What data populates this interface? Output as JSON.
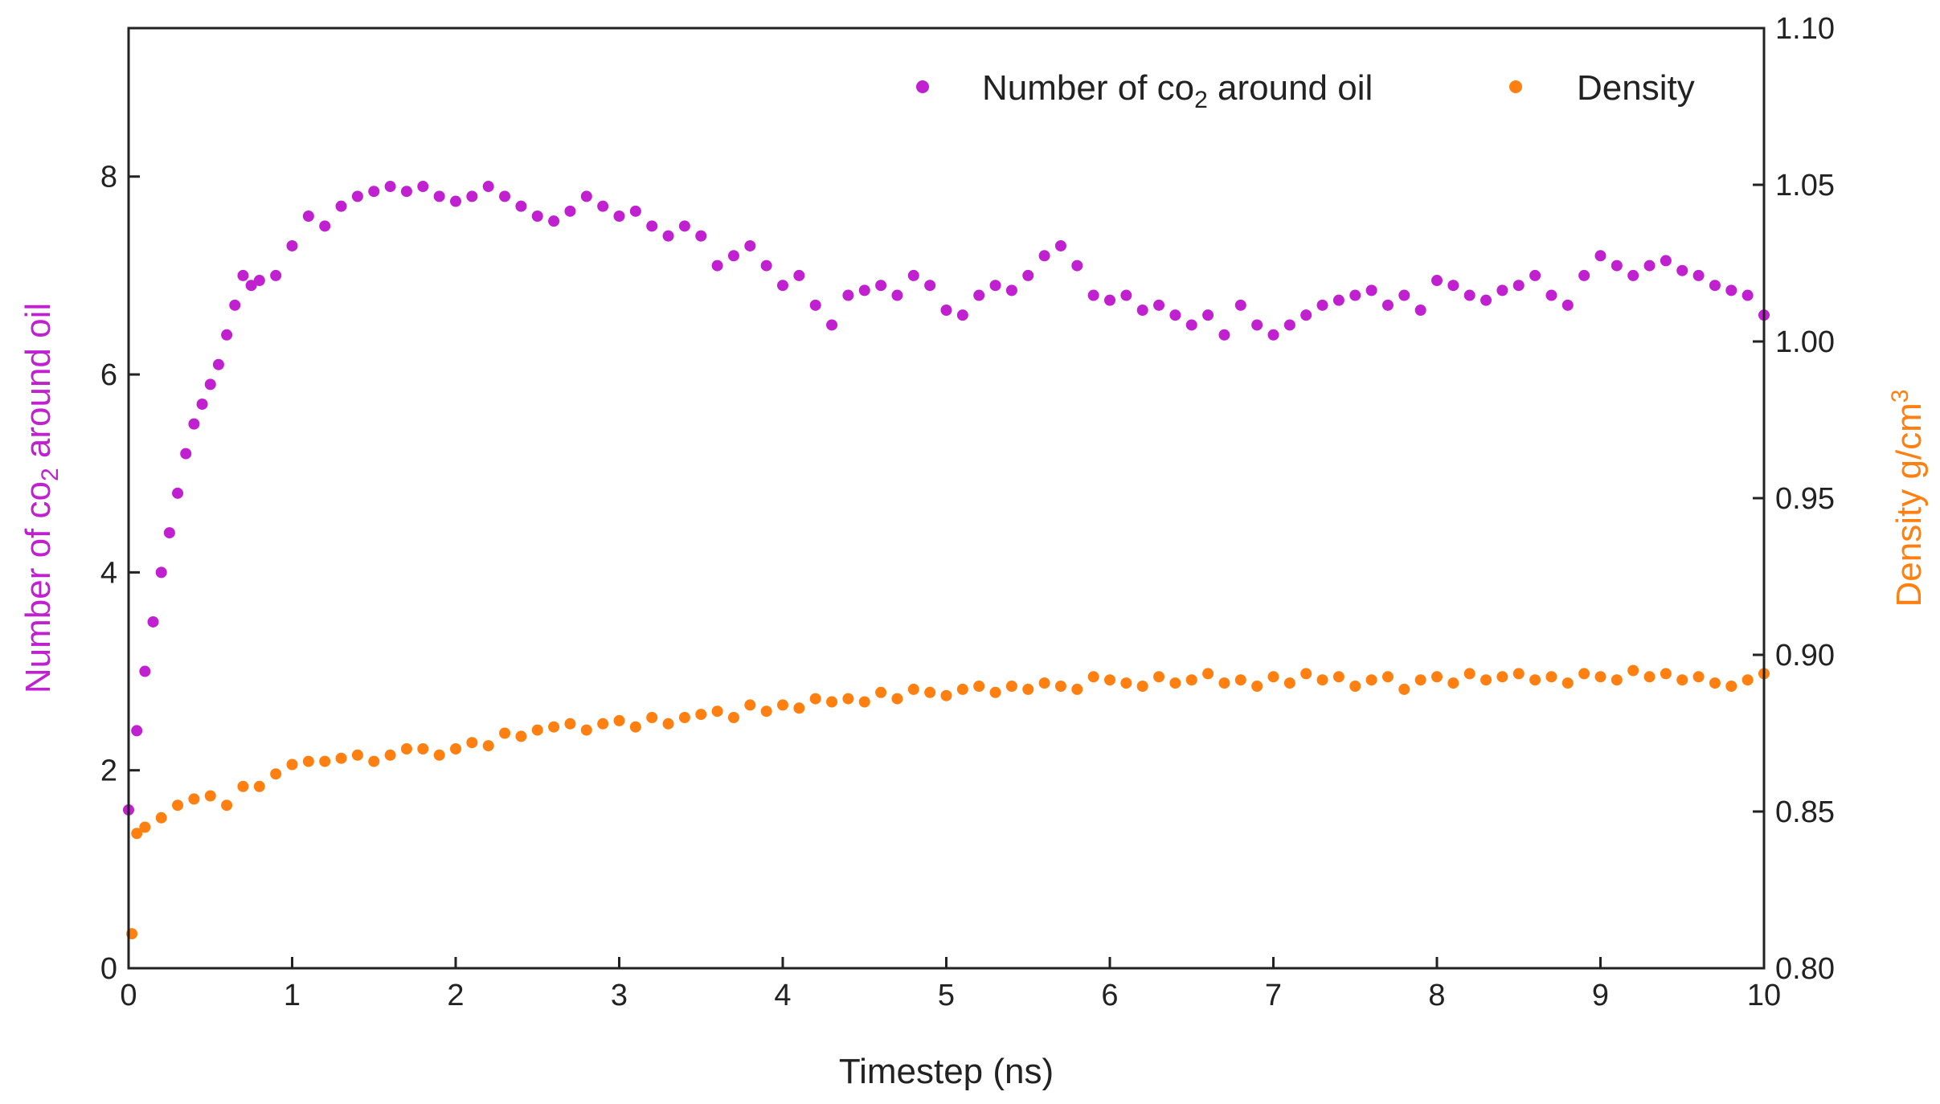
{
  "chart_data": {
    "type": "scatter",
    "title": "",
    "xlabel": "Timestep (ns)",
    "ylabel_left": {
      "prefix": "Number of co",
      "subscript": "2",
      "suffix": " around oil"
    },
    "ylabel_right": {
      "prefix": "Density g/cm",
      "superscript": "3"
    },
    "xlim": [
      0,
      10
    ],
    "ylim_left": [
      0,
      9.5
    ],
    "ylim_right": [
      0.8,
      1.1
    ],
    "x_ticks": [
      "0",
      "1",
      "2",
      "3",
      "4",
      "5",
      "6",
      "7",
      "8",
      "9",
      "10"
    ],
    "y_left_ticks": [
      "0",
      "2",
      "4",
      "6",
      "8"
    ],
    "y_right_ticks": [
      "0.80",
      "0.85",
      "0.90",
      "0.95",
      "1.00",
      "1.05",
      "1.10"
    ],
    "grid": false,
    "legend_position": "top-right",
    "series": [
      {
        "name": "Number of co2 around oil",
        "label": {
          "prefix": "Number of co",
          "subscript": "2",
          "suffix": " around oil"
        },
        "axis": "left",
        "color": "#c020d0",
        "x": [
          0,
          0.05,
          0.1,
          0.15,
          0.2,
          0.25,
          0.3,
          0.35,
          0.4,
          0.45,
          0.5,
          0.55,
          0.6,
          0.65,
          0.7,
          0.75,
          0.8,
          0.9,
          1.0,
          1.1,
          1.2,
          1.3,
          1.4,
          1.5,
          1.6,
          1.7,
          1.8,
          1.9,
          2.0,
          2.1,
          2.2,
          2.3,
          2.4,
          2.5,
          2.6,
          2.7,
          2.8,
          2.9,
          3.0,
          3.1,
          3.2,
          3.3,
          3.4,
          3.5,
          3.6,
          3.7,
          3.8,
          3.9,
          4.0,
          4.1,
          4.2,
          4.3,
          4.4,
          4.5,
          4.6,
          4.7,
          4.8,
          4.9,
          5.0,
          5.1,
          5.2,
          5.3,
          5.4,
          5.5,
          5.6,
          5.7,
          5.8,
          5.9,
          6.0,
          6.1,
          6.2,
          6.3,
          6.4,
          6.5,
          6.6,
          6.7,
          6.8,
          6.9,
          7.0,
          7.1,
          7.2,
          7.3,
          7.4,
          7.5,
          7.6,
          7.7,
          7.8,
          7.9,
          8.0,
          8.1,
          8.2,
          8.3,
          8.4,
          8.5,
          8.6,
          8.7,
          8.8,
          8.9,
          9.0,
          9.1,
          9.2,
          9.3,
          9.4,
          9.5,
          9.6,
          9.7,
          9.8,
          9.9,
          10.0
        ],
        "y": [
          1.6,
          2.4,
          3.0,
          3.5,
          4.0,
          4.4,
          4.8,
          5.2,
          5.5,
          5.7,
          5.9,
          6.1,
          6.4,
          6.7,
          7.0,
          6.9,
          6.95,
          7.0,
          7.3,
          7.6,
          7.5,
          7.7,
          7.8,
          7.85,
          7.9,
          7.85,
          7.9,
          7.8,
          7.75,
          7.8,
          7.9,
          7.8,
          7.7,
          7.6,
          7.55,
          7.65,
          7.8,
          7.7,
          7.6,
          7.65,
          7.5,
          7.4,
          7.5,
          7.4,
          7.1,
          7.2,
          7.3,
          7.1,
          6.9,
          7.0,
          6.7,
          6.5,
          6.8,
          6.85,
          6.9,
          6.8,
          7.0,
          6.9,
          6.65,
          6.6,
          6.8,
          6.9,
          6.85,
          7.0,
          7.2,
          7.3,
          7.1,
          6.8,
          6.75,
          6.8,
          6.65,
          6.7,
          6.6,
          6.5,
          6.6,
          6.4,
          6.7,
          6.5,
          6.4,
          6.5,
          6.6,
          6.7,
          6.75,
          6.8,
          6.85,
          6.7,
          6.8,
          6.65,
          6.95,
          6.9,
          6.8,
          6.75,
          6.85,
          6.9,
          7.0,
          6.8,
          6.7,
          7.0,
          7.2,
          7.1,
          7.0,
          7.1,
          7.15,
          7.05,
          7.0,
          6.9,
          6.85,
          6.8,
          6.6
        ]
      },
      {
        "name": "Density",
        "label": {
          "prefix": "Density"
        },
        "axis": "right",
        "color": "#ff8010",
        "x": [
          0.02,
          0.05,
          0.1,
          0.2,
          0.3,
          0.4,
          0.5,
          0.6,
          0.7,
          0.8,
          0.9,
          1.0,
          1.1,
          1.2,
          1.3,
          1.4,
          1.5,
          1.6,
          1.7,
          1.8,
          1.9,
          2.0,
          2.1,
          2.2,
          2.3,
          2.4,
          2.5,
          2.6,
          2.7,
          2.8,
          2.9,
          3.0,
          3.1,
          3.2,
          3.3,
          3.4,
          3.5,
          3.6,
          3.7,
          3.8,
          3.9,
          4.0,
          4.1,
          4.2,
          4.3,
          4.4,
          4.5,
          4.6,
          4.7,
          4.8,
          4.9,
          5.0,
          5.1,
          5.2,
          5.3,
          5.4,
          5.5,
          5.6,
          5.7,
          5.8,
          5.9,
          6.0,
          6.1,
          6.2,
          6.3,
          6.4,
          6.5,
          6.6,
          6.7,
          6.8,
          6.9,
          7.0,
          7.1,
          7.2,
          7.3,
          7.4,
          7.5,
          7.6,
          7.7,
          7.8,
          7.9,
          8.0,
          8.1,
          8.2,
          8.3,
          8.4,
          8.5,
          8.6,
          8.7,
          8.8,
          8.9,
          9.0,
          9.1,
          9.2,
          9.3,
          9.4,
          9.5,
          9.6,
          9.7,
          9.8,
          9.9,
          10.0
        ],
        "y": [
          0.811,
          0.843,
          0.845,
          0.848,
          0.852,
          0.854,
          0.855,
          0.852,
          0.858,
          0.858,
          0.862,
          0.865,
          0.866,
          0.866,
          0.867,
          0.868,
          0.866,
          0.868,
          0.87,
          0.87,
          0.868,
          0.87,
          0.872,
          0.871,
          0.875,
          0.874,
          0.876,
          0.877,
          0.878,
          0.876,
          0.878,
          0.879,
          0.877,
          0.88,
          0.878,
          0.88,
          0.881,
          0.882,
          0.88,
          0.884,
          0.882,
          0.884,
          0.883,
          0.886,
          0.885,
          0.886,
          0.885,
          0.888,
          0.886,
          0.889,
          0.888,
          0.887,
          0.889,
          0.89,
          0.888,
          0.89,
          0.889,
          0.891,
          0.89,
          0.889,
          0.893,
          0.892,
          0.891,
          0.89,
          0.893,
          0.891,
          0.892,
          0.894,
          0.891,
          0.892,
          0.89,
          0.893,
          0.891,
          0.894,
          0.892,
          0.893,
          0.89,
          0.892,
          0.893,
          0.889,
          0.892,
          0.893,
          0.891,
          0.894,
          0.892,
          0.893,
          0.894,
          0.892,
          0.893,
          0.891,
          0.894,
          0.893,
          0.892,
          0.895,
          0.893,
          0.894,
          0.892,
          0.893,
          0.891,
          0.89,
          0.892,
          0.894
        ]
      }
    ]
  },
  "colors": {
    "series_co2": "#c020d0",
    "series_density": "#ff8010",
    "axis": "#222222"
  }
}
